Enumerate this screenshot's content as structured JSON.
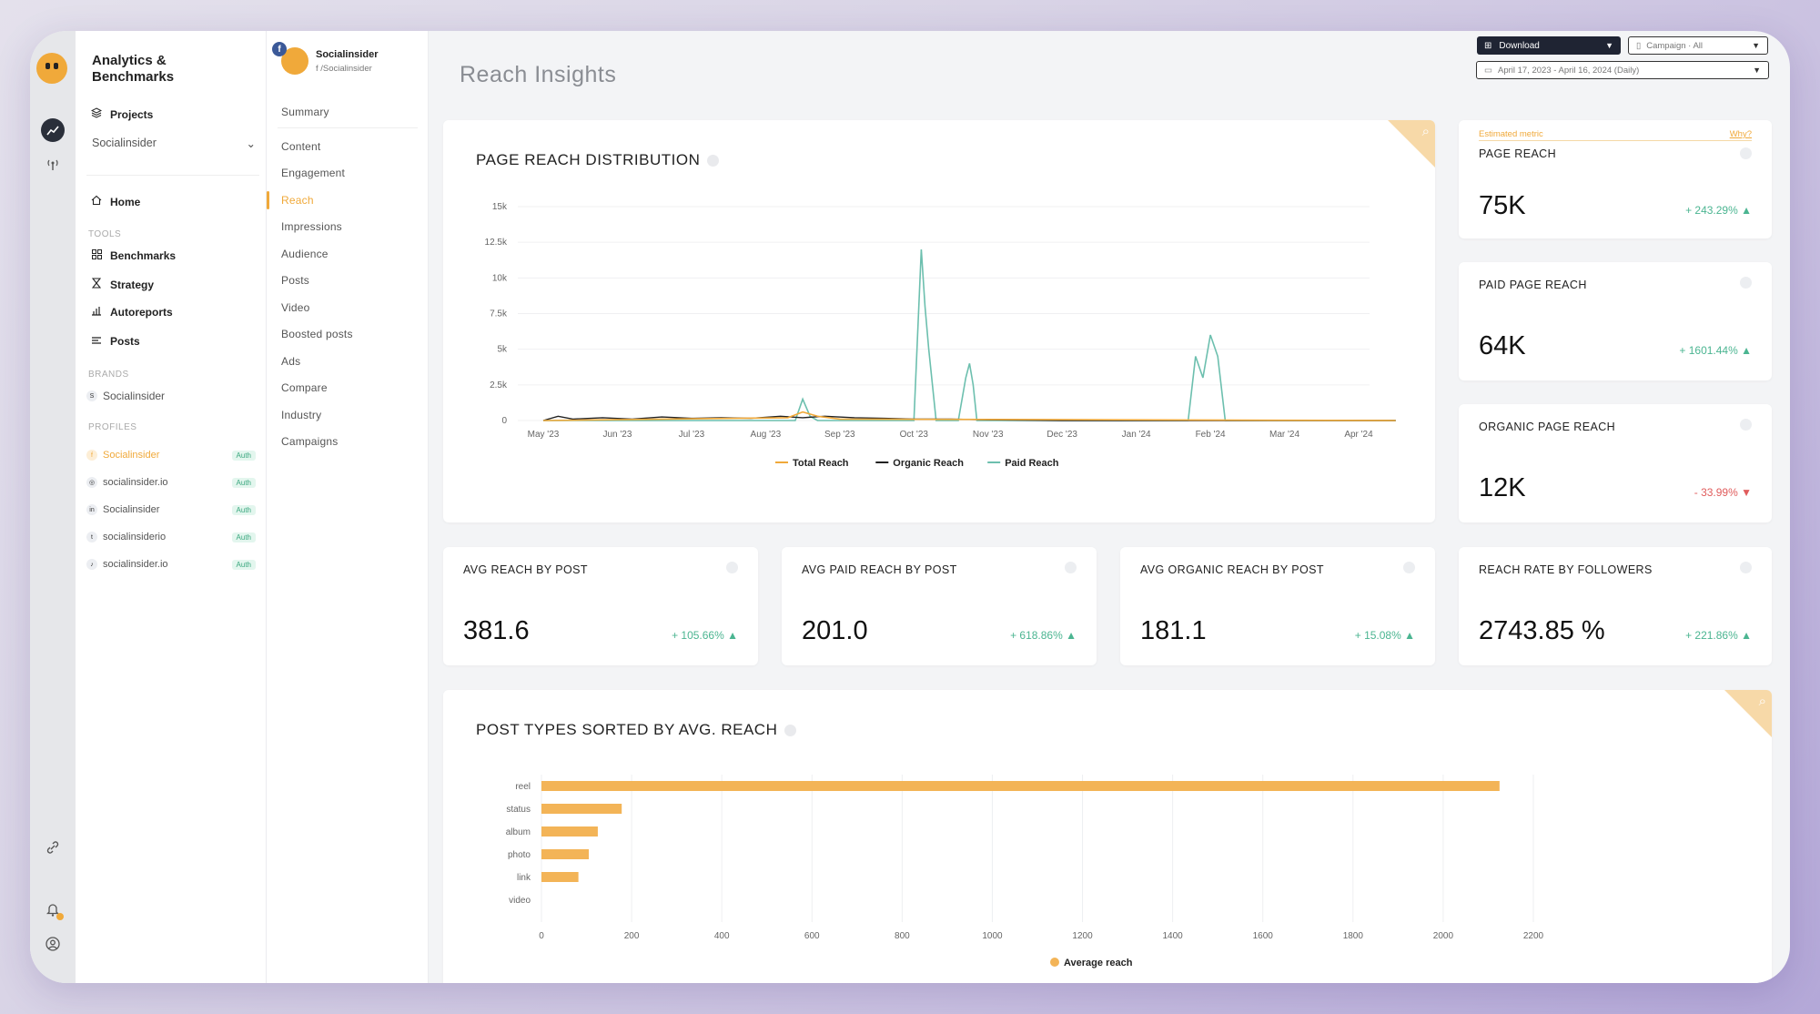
{
  "sidebar": {
    "title": "Analytics & Benchmarks",
    "projects_label": "Projects",
    "workspace_selected": "Socialinsider",
    "home_label": "Home",
    "tools_section": "TOOLS",
    "tools": [
      {
        "label": "Benchmarks",
        "icon": "grid-icon"
      },
      {
        "label": "Strategy",
        "icon": "hourglass-icon"
      },
      {
        "label": "Autoreports",
        "icon": "bar-chart-icon"
      },
      {
        "label": "Posts",
        "icon": "list-icon"
      }
    ],
    "brands_section": "BRANDS",
    "brand": {
      "badge": "S",
      "label": "Socialinsider"
    },
    "profiles_section": "PROFILES",
    "profiles": [
      {
        "label": "Socialinsider",
        "badge": "Auth",
        "icon": "f"
      },
      {
        "label": "socialinsider.io",
        "badge": "Auth",
        "icon": "◎"
      },
      {
        "label": "Socialinsider",
        "badge": "Auth",
        "icon": "in"
      },
      {
        "label": "socialinsiderio",
        "badge": "Auth",
        "icon": "t"
      },
      {
        "label": "socialinsider.io",
        "badge": "Auth",
        "icon": "♪"
      }
    ]
  },
  "submenu": {
    "profile_name": "Socialinsider",
    "profile_handle": "f /Socialinsider",
    "items": [
      "Summary",
      "Content",
      "Engagement",
      "Reach",
      "Impressions",
      "Audience",
      "Posts",
      "Video",
      "Boosted posts",
      "Ads",
      "Compare",
      "Industry",
      "Campaigns"
    ],
    "active": "Reach"
  },
  "header": {
    "title": "Reach Insights",
    "download_label": "Download",
    "campaign_label": "Campaign · All",
    "date_range": "April 17, 2023 - April 16, 2024 (Daily)"
  },
  "colors": {
    "accent": "#f0a93a",
    "total": "#f0a93a",
    "organic": "#222222",
    "paid": "#6cbfae",
    "positive": "#4bb591",
    "negative": "#e05c5c"
  },
  "reach_chart": {
    "title": "PAGE REACH DISTRIBUTION",
    "chart_data": {
      "type": "line",
      "x": [
        "May '23",
        "Jun '23",
        "Jul '23",
        "Aug '23",
        "Sep '23",
        "Oct '23",
        "Nov '23",
        "Dec '23",
        "Jan '24",
        "Feb '24",
        "Mar '24",
        "Apr '24"
      ],
      "yticks": [
        "0",
        "2.5k",
        "5k",
        "7.5k",
        "10k",
        "12.5k",
        "15k"
      ],
      "ylim": [
        0,
        15000
      ],
      "legend": [
        "Total Reach",
        "Organic Reach",
        "Paid Reach"
      ],
      "series": [
        {
          "name": "Paid Reach",
          "points": [
            [
              0,
              0
            ],
            [
              3.4,
              0
            ],
            [
              3.5,
              1500
            ],
            [
              3.6,
              300
            ],
            [
              3.7,
              0
            ],
            [
              5.0,
              0
            ],
            [
              5.1,
              12000
            ],
            [
              5.15,
              8000
            ],
            [
              5.2,
              5000
            ],
            [
              5.3,
              0
            ],
            [
              5.6,
              0
            ],
            [
              5.7,
              3000
            ],
            [
              5.75,
              4000
            ],
            [
              5.8,
              2500
            ],
            [
              5.85,
              0
            ],
            [
              8.7,
              0
            ],
            [
              8.8,
              4500
            ],
            [
              8.9,
              3000
            ],
            [
              9.0,
              6000
            ],
            [
              9.1,
              4500
            ],
            [
              9.2,
              0
            ],
            [
              11.5,
              0
            ]
          ]
        },
        {
          "name": "Organic Reach",
          "points": [
            [
              0,
              0
            ],
            [
              0.2,
              300
            ],
            [
              0.4,
              100
            ],
            [
              0.8,
              200
            ],
            [
              1.2,
              100
            ],
            [
              1.6,
              250
            ],
            [
              2.0,
              150
            ],
            [
              2.4,
              200
            ],
            [
              2.8,
              150
            ],
            [
              3.2,
              300
            ],
            [
              3.5,
              200
            ],
            [
              3.8,
              300
            ],
            [
              4.2,
              200
            ],
            [
              4.6,
              150
            ],
            [
              5.0,
              100
            ],
            [
              5.5,
              100
            ],
            [
              6.0,
              50
            ],
            [
              7.0,
              0
            ],
            [
              11.5,
              0
            ]
          ]
        },
        {
          "name": "Total Reach",
          "points": [
            [
              0,
              0
            ],
            [
              3.3,
              200
            ],
            [
              3.5,
              600
            ],
            [
              3.7,
              300
            ],
            [
              4.0,
              100
            ],
            [
              11.5,
              0
            ]
          ]
        }
      ]
    }
  },
  "kpis": [
    {
      "title": "PAGE REACH",
      "value": "75K",
      "change": "+ 243.29% ▲",
      "trend": "up",
      "estimated": "Estimated metric",
      "why": "Why?"
    },
    {
      "title": "PAID PAGE REACH",
      "value": "64K",
      "change": "+ 1601.44% ▲",
      "trend": "up"
    },
    {
      "title": "ORGANIC PAGE REACH",
      "value": "12K",
      "change": "- 33.99% ▼",
      "trend": "down"
    },
    {
      "title": "AVG REACH BY POST",
      "value": "381.6",
      "change": "+ 105.66% ▲",
      "trend": "up"
    },
    {
      "title": "AVG PAID REACH BY POST",
      "value": "201.0",
      "change": "+ 618.86% ▲",
      "trend": "up"
    },
    {
      "title": "AVG ORGANIC REACH BY POST",
      "value": "181.1",
      "change": "+ 15.08% ▲",
      "trend": "up"
    },
    {
      "title": "REACH RATE BY FOLLOWERS",
      "value": "2743.85 %",
      "change": "+ 221.86% ▲",
      "trend": "up"
    }
  ],
  "post_types_chart": {
    "title": "POST TYPES SORTED BY AVG. REACH",
    "chart_data": {
      "type": "bar",
      "orientation": "horizontal",
      "categories": [
        "reel",
        "status",
        "album",
        "photo",
        "link",
        "video"
      ],
      "values": [
        2125,
        178,
        125,
        105,
        82,
        0
      ],
      "xticks": [
        0,
        200,
        400,
        600,
        800,
        1000,
        1200,
        1400,
        1600,
        1800,
        2000,
        2200
      ],
      "xlim": [
        0,
        2200
      ],
      "legend": "Average reach",
      "color": "#f3b457"
    }
  }
}
